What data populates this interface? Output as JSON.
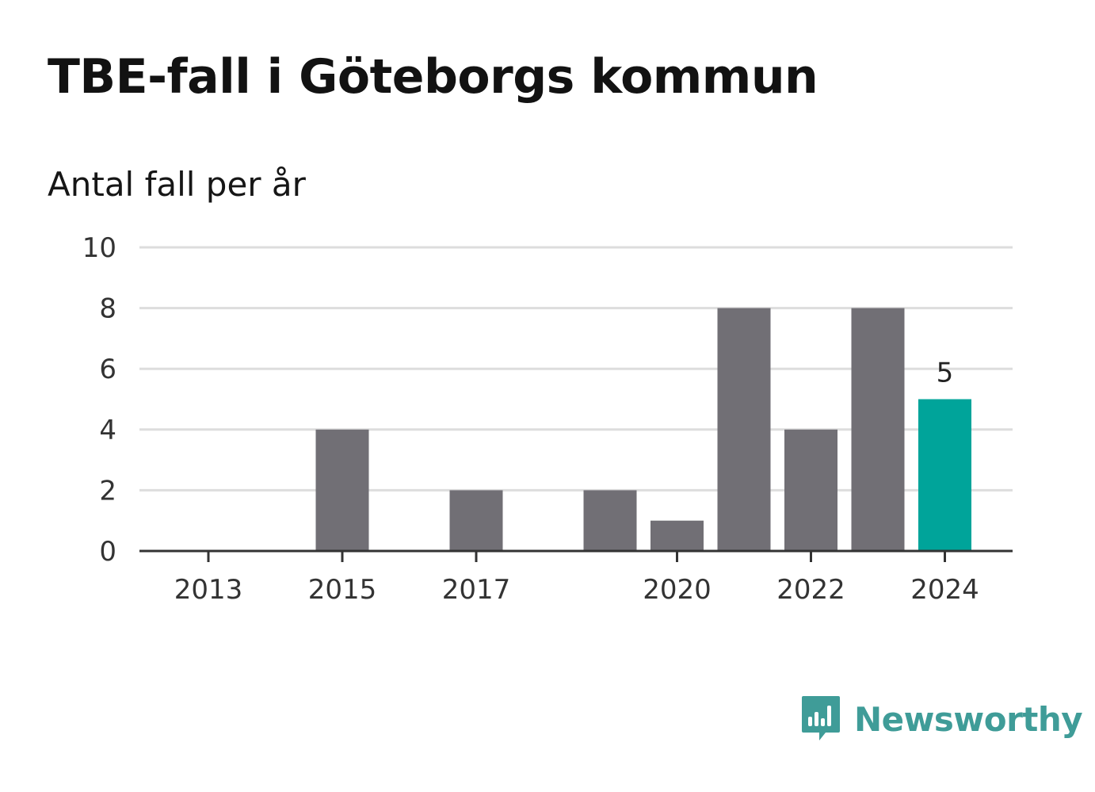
{
  "header": {
    "title": "TBE-fall i Göteborgs kommun",
    "subtitle": "Antal fall per år"
  },
  "brand": {
    "name": "Newsworthy",
    "color": "#3f9c98"
  },
  "colors": {
    "bar": "#716f75",
    "highlight": "#00a49a",
    "grid": "#dddddd",
    "axis": "#333333"
  },
  "chart_data": {
    "type": "bar",
    "title": "TBE-fall i Göteborgs kommun",
    "subtitle": "Antal fall per år",
    "categories": [
      "2013",
      "2014",
      "2015",
      "2016",
      "2017",
      "2018",
      "2019",
      "2020",
      "2021",
      "2022",
      "2023",
      "2024"
    ],
    "values": [
      0,
      0,
      4,
      0,
      2,
      0,
      2,
      1,
      8,
      4,
      8,
      5
    ],
    "x_tick_labels": [
      "2013",
      "2015",
      "2017",
      "2020",
      "2022",
      "2024"
    ],
    "ylim": [
      0,
      10
    ],
    "y_ticks": [
      0,
      2,
      4,
      6,
      8,
      10
    ],
    "grid": true,
    "highlight_category": "2024",
    "data_labels": [
      {
        "category": "2024",
        "text": "5"
      }
    ]
  }
}
